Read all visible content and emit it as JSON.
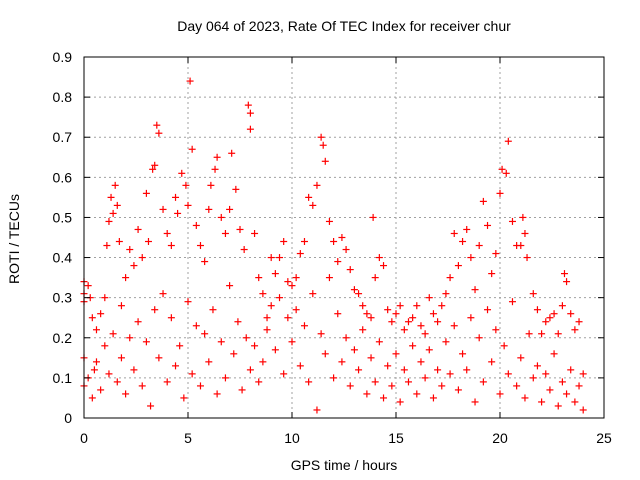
{
  "chart_data": {
    "type": "scatter",
    "title": "Day 064 of 2023, Rate Of TEC Index for receiver chur",
    "xlabel": "GPS time / hours",
    "ylabel": "ROTI / TECUs",
    "xlim": [
      0,
      25
    ],
    "ylim": [
      0,
      0.9
    ],
    "grid": true,
    "legend": "none",
    "marker": "+",
    "marker_color": "#ff0000",
    "x_ticks": [
      {
        "value": 0,
        "label": "0"
      },
      {
        "value": 5,
        "label": "5"
      },
      {
        "value": 10,
        "label": "10"
      },
      {
        "value": 15,
        "label": "15"
      },
      {
        "value": 20,
        "label": "20"
      },
      {
        "value": 25,
        "label": "25"
      }
    ],
    "y_ticks": [
      {
        "value": 0,
        "label": "0"
      },
      {
        "value": 0.1,
        "label": "0.1"
      },
      {
        "value": 0.2,
        "label": "0.2"
      },
      {
        "value": 0.3,
        "label": "0.3"
      },
      {
        "value": 0.4,
        "label": "0.4"
      },
      {
        "value": 0.5,
        "label": "0.5"
      },
      {
        "value": 0.6,
        "label": "0.6"
      },
      {
        "value": 0.7,
        "label": "0.7"
      },
      {
        "value": 0.8,
        "label": "0.8"
      },
      {
        "value": 0.9,
        "label": "0.9"
      }
    ],
    "points": [
      [
        0.0,
        0.34
      ],
      [
        0.0,
        0.29
      ],
      [
        0.0,
        0.31
      ],
      [
        0.0,
        0.15
      ],
      [
        0.0,
        0.08
      ],
      [
        0.2,
        0.33
      ],
      [
        0.3,
        0.3
      ],
      [
        0.4,
        0.25
      ],
      [
        0.5,
        0.12
      ],
      [
        0.6,
        0.22
      ],
      [
        0.8,
        0.26
      ],
      [
        1.0,
        0.3
      ],
      [
        1.1,
        0.43
      ],
      [
        1.2,
        0.49
      ],
      [
        1.3,
        0.55
      ],
      [
        1.4,
        0.51
      ],
      [
        1.5,
        0.58
      ],
      [
        1.6,
        0.53
      ],
      [
        1.7,
        0.44
      ],
      [
        1.8,
        0.28
      ],
      [
        2.0,
        0.35
      ],
      [
        2.2,
        0.42
      ],
      [
        2.4,
        0.38
      ],
      [
        2.6,
        0.47
      ],
      [
        2.8,
        0.4
      ],
      [
        3.0,
        0.56
      ],
      [
        3.1,
        0.44
      ],
      [
        3.3,
        0.62
      ],
      [
        3.4,
        0.63
      ],
      [
        3.5,
        0.73
      ],
      [
        3.6,
        0.71
      ],
      [
        3.8,
        0.52
      ],
      [
        4.0,
        0.46
      ],
      [
        4.2,
        0.43
      ],
      [
        4.4,
        0.55
      ],
      [
        4.5,
        0.51
      ],
      [
        4.7,
        0.61
      ],
      [
        4.9,
        0.58
      ],
      [
        5.0,
        0.53
      ],
      [
        5.1,
        0.84
      ],
      [
        5.2,
        0.67
      ],
      [
        5.4,
        0.48
      ],
      [
        5.6,
        0.43
      ],
      [
        5.8,
        0.39
      ],
      [
        6.0,
        0.52
      ],
      [
        6.1,
        0.58
      ],
      [
        6.3,
        0.62
      ],
      [
        6.4,
        0.65
      ],
      [
        6.6,
        0.5
      ],
      [
        6.8,
        0.46
      ],
      [
        7.0,
        0.52
      ],
      [
        7.1,
        0.66
      ],
      [
        7.3,
        0.57
      ],
      [
        7.5,
        0.47
      ],
      [
        7.7,
        0.42
      ],
      [
        7.9,
        0.78
      ],
      [
        8.0,
        0.76
      ],
      [
        8.0,
        0.72
      ],
      [
        8.2,
        0.46
      ],
      [
        8.4,
        0.35
      ],
      [
        8.6,
        0.31
      ],
      [
        8.8,
        0.25
      ],
      [
        9.0,
        0.4
      ],
      [
        9.2,
        0.36
      ],
      [
        9.4,
        0.4
      ],
      [
        9.6,
        0.44
      ],
      [
        9.8,
        0.34
      ],
      [
        10.0,
        0.33
      ],
      [
        10.2,
        0.35
      ],
      [
        10.4,
        0.41
      ],
      [
        10.6,
        0.44
      ],
      [
        10.8,
        0.55
      ],
      [
        11.0,
        0.53
      ],
      [
        11.2,
        0.58
      ],
      [
        11.4,
        0.7
      ],
      [
        11.5,
        0.68
      ],
      [
        11.6,
        0.64
      ],
      [
        11.8,
        0.49
      ],
      [
        12.0,
        0.44
      ],
      [
        12.2,
        0.39
      ],
      [
        12.4,
        0.45
      ],
      [
        12.6,
        0.42
      ],
      [
        12.8,
        0.37
      ],
      [
        13.0,
        0.32
      ],
      [
        13.2,
        0.31
      ],
      [
        13.4,
        0.28
      ],
      [
        13.6,
        0.26
      ],
      [
        13.8,
        0.25
      ],
      [
        13.9,
        0.5
      ],
      [
        14.0,
        0.35
      ],
      [
        14.2,
        0.4
      ],
      [
        14.4,
        0.38
      ],
      [
        14.6,
        0.27
      ],
      [
        14.8,
        0.24
      ],
      [
        15.0,
        0.26
      ],
      [
        15.2,
        0.28
      ],
      [
        15.4,
        0.22
      ],
      [
        15.6,
        0.24
      ],
      [
        15.8,
        0.25
      ],
      [
        16.0,
        0.28
      ],
      [
        16.2,
        0.23
      ],
      [
        16.4,
        0.21
      ],
      [
        16.6,
        0.3
      ],
      [
        16.8,
        0.26
      ],
      [
        17.0,
        0.24
      ],
      [
        17.2,
        0.28
      ],
      [
        17.4,
        0.31
      ],
      [
        17.6,
        0.35
      ],
      [
        17.8,
        0.46
      ],
      [
        18.0,
        0.38
      ],
      [
        18.2,
        0.44
      ],
      [
        18.4,
        0.47
      ],
      [
        18.6,
        0.4
      ],
      [
        18.8,
        0.32
      ],
      [
        19.0,
        0.43
      ],
      [
        19.2,
        0.54
      ],
      [
        19.4,
        0.48
      ],
      [
        19.6,
        0.36
      ],
      [
        19.8,
        0.41
      ],
      [
        20.0,
        0.56
      ],
      [
        20.1,
        0.62
      ],
      [
        20.3,
        0.61
      ],
      [
        20.4,
        0.69
      ],
      [
        20.6,
        0.49
      ],
      [
        20.8,
        0.43
      ],
      [
        21.0,
        0.43
      ],
      [
        21.1,
        0.5
      ],
      [
        21.2,
        0.46
      ],
      [
        21.3,
        0.4
      ],
      [
        21.6,
        0.31
      ],
      [
        21.8,
        0.27
      ],
      [
        22.0,
        0.21
      ],
      [
        22.2,
        0.24
      ],
      [
        22.4,
        0.25
      ],
      [
        22.6,
        0.26
      ],
      [
        22.8,
        0.21
      ],
      [
        23.0,
        0.28
      ],
      [
        23.1,
        0.36
      ],
      [
        23.2,
        0.34
      ],
      [
        23.4,
        0.26
      ],
      [
        23.6,
        0.22
      ],
      [
        23.8,
        0.24
      ],
      [
        24.0,
        0.11
      ],
      [
        0.2,
        0.1
      ],
      [
        0.4,
        0.05
      ],
      [
        0.6,
        0.14
      ],
      [
        0.8,
        0.07
      ],
      [
        1.0,
        0.18
      ],
      [
        1.2,
        0.11
      ],
      [
        1.4,
        0.21
      ],
      [
        1.6,
        0.09
      ],
      [
        1.8,
        0.15
      ],
      [
        2.0,
        0.06
      ],
      [
        2.2,
        0.2
      ],
      [
        2.4,
        0.12
      ],
      [
        2.6,
        0.24
      ],
      [
        2.8,
        0.08
      ],
      [
        3.0,
        0.19
      ],
      [
        3.2,
        0.03
      ],
      [
        3.4,
        0.27
      ],
      [
        3.6,
        0.15
      ],
      [
        3.8,
        0.31
      ],
      [
        4.0,
        0.09
      ],
      [
        4.2,
        0.25
      ],
      [
        4.4,
        0.13
      ],
      [
        4.6,
        0.18
      ],
      [
        4.8,
        0.05
      ],
      [
        5.0,
        0.29
      ],
      [
        5.2,
        0.11
      ],
      [
        5.4,
        0.23
      ],
      [
        5.6,
        0.08
      ],
      [
        5.8,
        0.21
      ],
      [
        6.0,
        0.14
      ],
      [
        6.2,
        0.27
      ],
      [
        6.4,
        0.06
      ],
      [
        6.6,
        0.19
      ],
      [
        6.8,
        0.1
      ],
      [
        7.0,
        0.33
      ],
      [
        7.2,
        0.16
      ],
      [
        7.4,
        0.24
      ],
      [
        7.6,
        0.07
      ],
      [
        7.8,
        0.2
      ],
      [
        8.0,
        0.12
      ],
      [
        8.2,
        0.18
      ],
      [
        8.4,
        0.09
      ],
      [
        8.6,
        0.14
      ],
      [
        8.8,
        0.22
      ],
      [
        9.0,
        0.28
      ],
      [
        9.2,
        0.17
      ],
      [
        9.4,
        0.3
      ],
      [
        9.6,
        0.11
      ],
      [
        9.8,
        0.25
      ],
      [
        10.0,
        0.19
      ],
      [
        10.2,
        0.27
      ],
      [
        10.4,
        0.13
      ],
      [
        10.6,
        0.23
      ],
      [
        10.8,
        0.09
      ],
      [
        11.0,
        0.31
      ],
      [
        11.2,
        0.02
      ],
      [
        11.4,
        0.21
      ],
      [
        11.6,
        0.16
      ],
      [
        11.8,
        0.35
      ],
      [
        12.0,
        0.1
      ],
      [
        12.2,
        0.26
      ],
      [
        12.4,
        0.14
      ],
      [
        12.6,
        0.2
      ],
      [
        12.8,
        0.08
      ],
      [
        13.0,
        0.17
      ],
      [
        13.2,
        0.12
      ],
      [
        13.4,
        0.22
      ],
      [
        13.6,
        0.06
      ],
      [
        13.8,
        0.15
      ],
      [
        14.0,
        0.09
      ],
      [
        14.2,
        0.19
      ],
      [
        14.4,
        0.05
      ],
      [
        14.6,
        0.13
      ],
      [
        14.8,
        0.08
      ],
      [
        15.0,
        0.16
      ],
      [
        15.2,
        0.04
      ],
      [
        15.4,
        0.12
      ],
      [
        15.6,
        0.09
      ],
      [
        15.8,
        0.18
      ],
      [
        16.0,
        0.06
      ],
      [
        16.2,
        0.14
      ],
      [
        16.4,
        0.1
      ],
      [
        16.6,
        0.17
      ],
      [
        16.8,
        0.05
      ],
      [
        17.0,
        0.12
      ],
      [
        17.2,
        0.08
      ],
      [
        17.4,
        0.19
      ],
      [
        17.6,
        0.11
      ],
      [
        17.8,
        0.23
      ],
      [
        18.0,
        0.07
      ],
      [
        18.2,
        0.16
      ],
      [
        18.4,
        0.12
      ],
      [
        18.6,
        0.25
      ],
      [
        18.8,
        0.04
      ],
      [
        19.0,
        0.2
      ],
      [
        19.2,
        0.09
      ],
      [
        19.4,
        0.27
      ],
      [
        19.6,
        0.14
      ],
      [
        19.8,
        0.22
      ],
      [
        20.0,
        0.06
      ],
      [
        20.2,
        0.18
      ],
      [
        20.4,
        0.11
      ],
      [
        20.6,
        0.29
      ],
      [
        20.8,
        0.08
      ],
      [
        21.0,
        0.15
      ],
      [
        21.2,
        0.05
      ],
      [
        21.4,
        0.21
      ],
      [
        21.6,
        0.1
      ],
      [
        21.8,
        0.13
      ],
      [
        22.0,
        0.04
      ],
      [
        22.2,
        0.11
      ],
      [
        22.4,
        0.07
      ],
      [
        22.6,
        0.16
      ],
      [
        22.8,
        0.03
      ],
      [
        23.0,
        0.09
      ],
      [
        23.2,
        0.06
      ],
      [
        23.4,
        0.12
      ],
      [
        23.6,
        0.04
      ],
      [
        23.8,
        0.08
      ],
      [
        24.0,
        0.02
      ]
    ]
  }
}
